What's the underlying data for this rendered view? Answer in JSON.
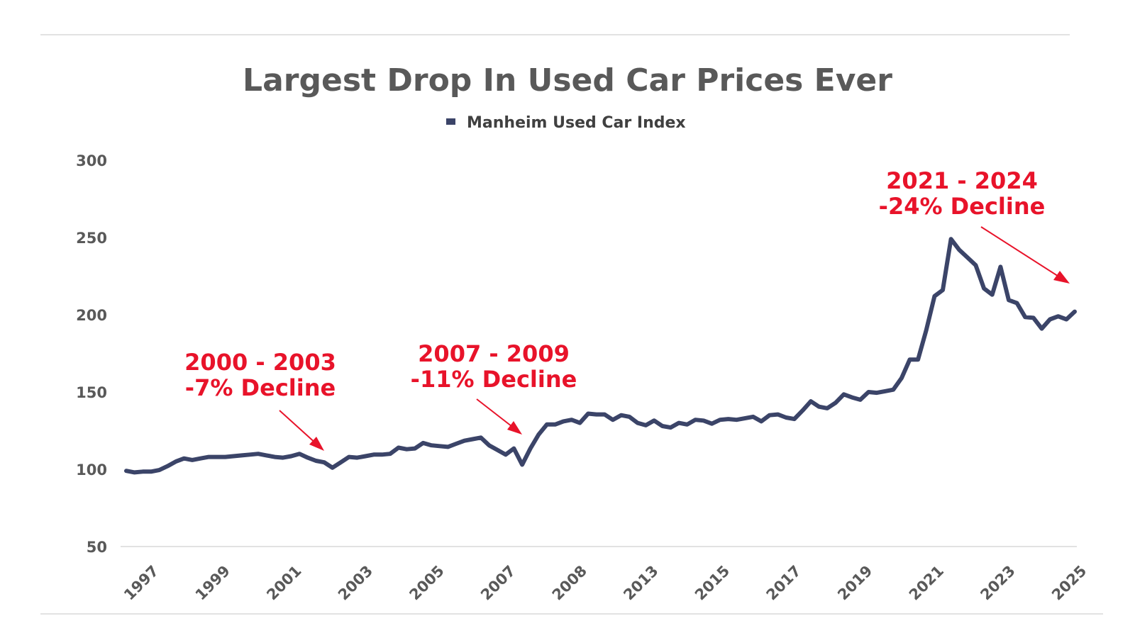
{
  "chart_data": {
    "type": "line",
    "title": "Largest Drop In Used Car Prices Ever",
    "legend": "Manheim Used Car Index",
    "legend_position": "top-center",
    "xlabel": "",
    "ylabel": "",
    "ylim": [
      50,
      300
    ],
    "yticks": [
      50,
      100,
      150,
      200,
      250,
      300
    ],
    "xticks": [
      "1997",
      "1999",
      "2001",
      "2003",
      "2005",
      "2007",
      "2008",
      "2013",
      "2015",
      "2017",
      "2019",
      "2021",
      "2023",
      "2025"
    ],
    "grid": false,
    "colors": {
      "series": "#3b4468",
      "annotation": "#e8132a",
      "text": "#595959",
      "rule": "#d9d9d9"
    },
    "series": [
      {
        "name": "Manheim Used Car Index",
        "values": [
          99,
          98,
          98.5,
          98.5,
          99.5,
          102,
          105,
          107,
          106,
          107,
          108,
          108,
          108,
          108.5,
          109,
          109.5,
          110,
          109,
          108,
          107.5,
          108.5,
          110,
          107.5,
          105.5,
          104.5,
          101,
          104.5,
          108,
          107.5,
          108.5,
          109.5,
          109.5,
          110,
          114,
          113,
          113.5,
          117,
          115.5,
          115,
          114.5,
          116.5,
          118.5,
          119.5,
          120.5,
          115.5,
          112.5,
          109.5,
          113.5,
          103,
          113.5,
          122.5,
          129,
          129,
          131,
          132,
          130,
          136,
          135.5,
          135.5,
          132,
          135,
          134,
          130,
          128.5,
          131.5,
          128,
          127,
          130,
          129,
          132,
          131.5,
          129.5,
          132,
          132.5,
          132,
          133,
          134,
          131,
          135,
          135.5,
          133.5,
          132.5,
          138,
          144,
          140.5,
          139.5,
          143,
          148.5,
          146.5,
          145,
          150,
          149.5,
          150.5,
          151.5,
          159,
          171,
          171,
          190,
          212,
          216,
          249,
          242,
          237,
          232,
          217,
          213,
          231,
          209.5,
          207.5,
          198.5,
          198,
          191,
          197,
          199,
          197,
          202
        ]
      }
    ],
    "annotations": [
      {
        "line1": "2000 - 2003",
        "line2": "-7% Decline"
      },
      {
        "line1": "2007 - 2009",
        "line2": "-11% Decline"
      },
      {
        "line1": "2021 - 2024",
        "line2": "-24% Decline"
      }
    ]
  }
}
